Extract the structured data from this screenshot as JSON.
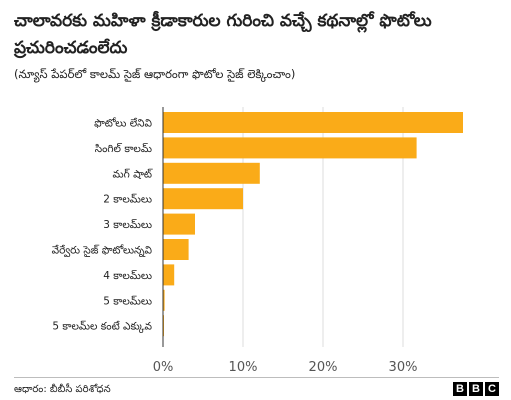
{
  "header": {
    "title": "చాలావరకు మహిళా క్రీడాకారుల గురించి వచ్చే కథనాల్లో ఫొటోలు ప్రచురించడంలేదు",
    "subtitle": "(న్యూస్ పేపర్‌లో కాలమ్ సైజ్ ఆధారంగా ఫొటోల సైజ్ లెక్కించాం)"
  },
  "footer": {
    "source": "ఆధారం: బీబీసీ పరిశోధన",
    "logo_letters": [
      "B",
      "B",
      "C"
    ]
  },
  "chart_data": {
    "type": "bar",
    "orientation": "horizontal",
    "categories": [
      "ఫొటోలు లేనివి",
      "సింగిల్ కాలమ్",
      "మగ్ షాట్",
      "2 కాలమ్‌లు",
      "3 కాలమ్‌లు",
      "వేర్వేరు సైజ్ ఫొటోలున్నవి",
      "4 కాలమ్‌లు",
      "5 కాలమ్‌లు",
      "5 కాలమ్‌ల కంటే ఎక్కువ"
    ],
    "values": [
      37.5,
      31.7,
      12.1,
      10.0,
      4.0,
      3.2,
      1.4,
      0.2,
      0.1
    ],
    "xlim": [
      0,
      40
    ],
    "xticks": [
      0,
      10,
      20,
      30
    ],
    "tick_labels": [
      "0%",
      "10%",
      "20%",
      "30%"
    ],
    "grid": true,
    "bar_color": "#faab18",
    "grid_color": "#dcdcdc"
  }
}
